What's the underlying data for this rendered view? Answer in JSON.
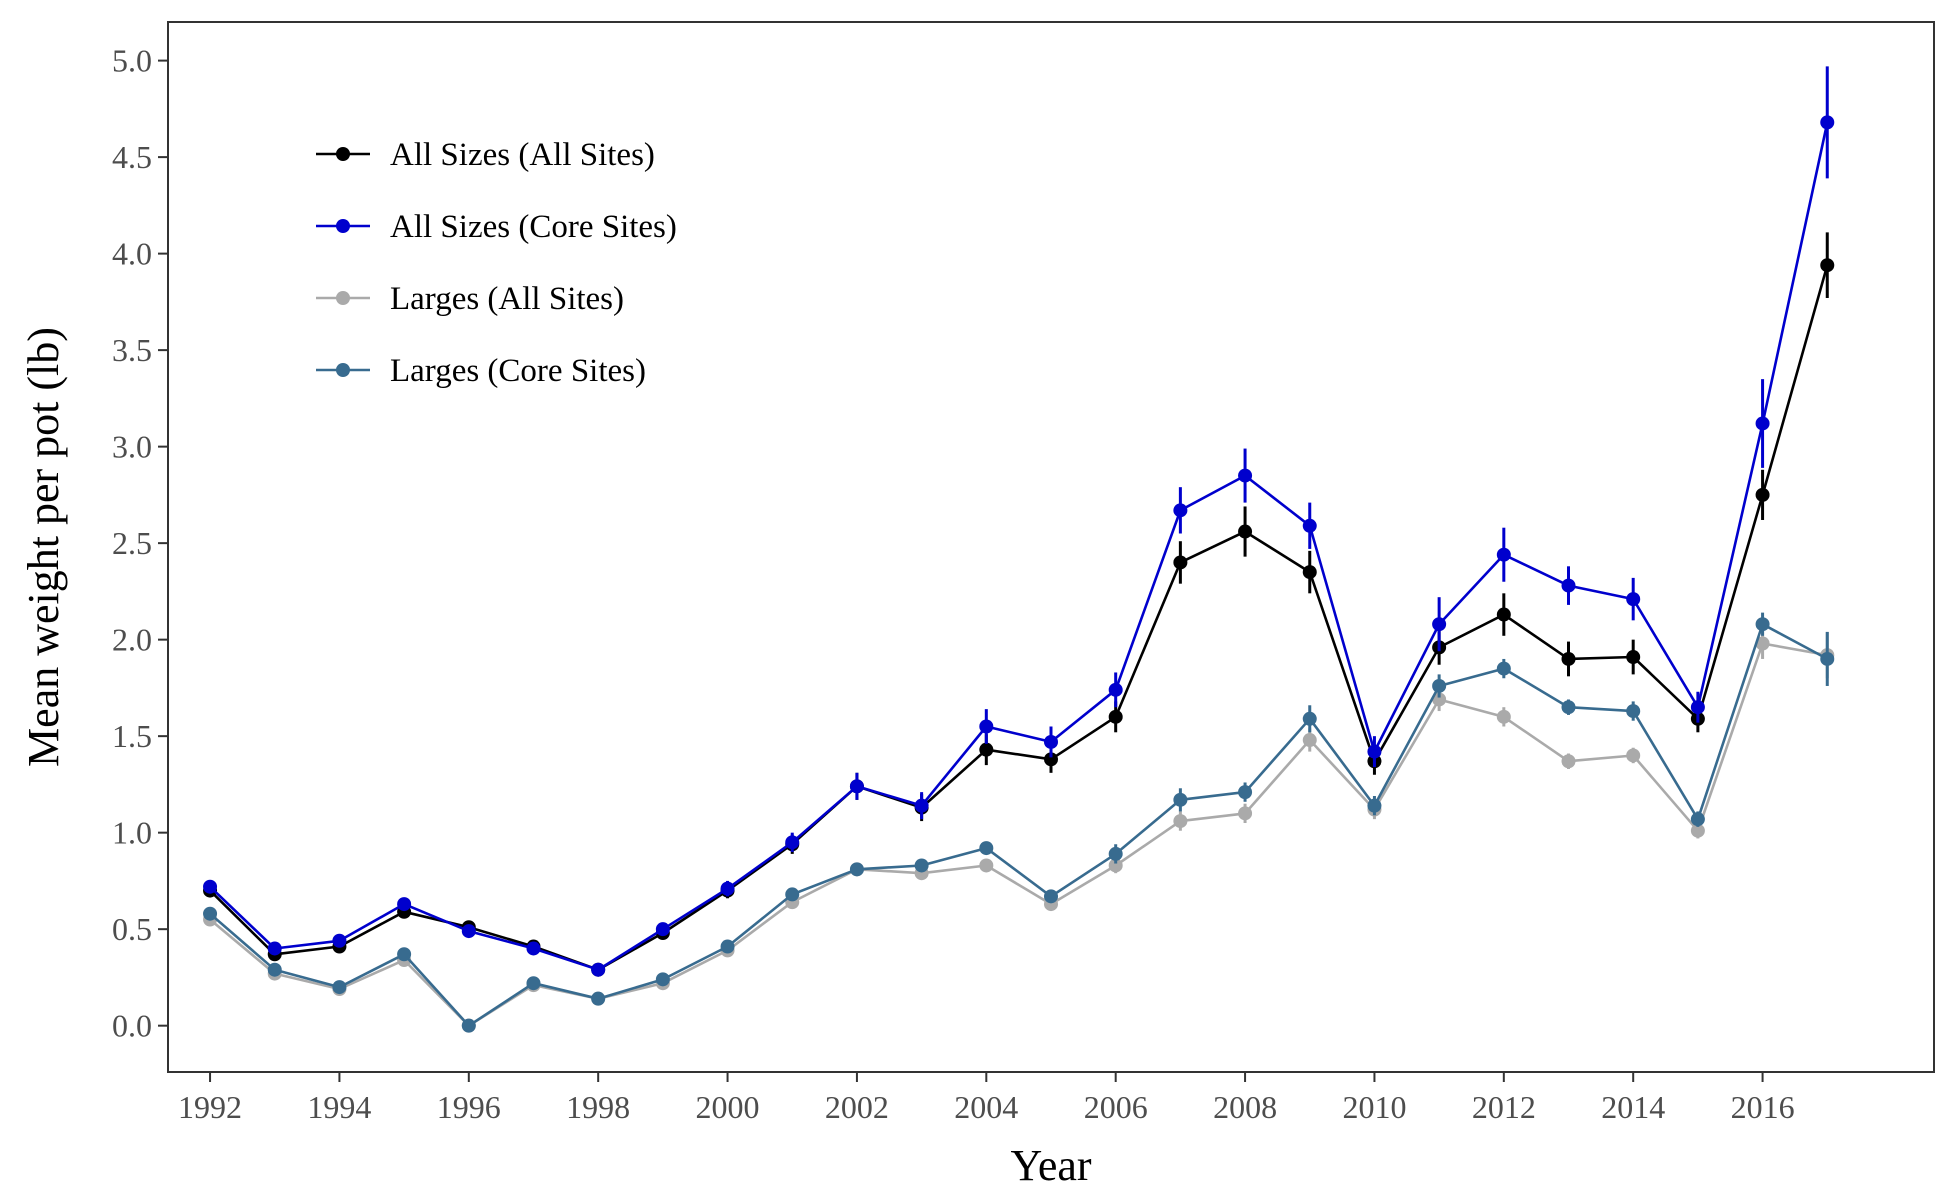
{
  "chart_data": {
    "type": "line",
    "xlabel": "Year",
    "ylabel": "Mean weight per pot (lb)",
    "x_ticks": [
      1992,
      1994,
      1996,
      1998,
      2000,
      2002,
      2004,
      2006,
      2008,
      2010,
      2012,
      2014,
      2016
    ],
    "y_ticks": [
      "0.0",
      "0.5",
      "1.0",
      "1.5",
      "2.0",
      "2.5",
      "3.0",
      "3.5",
      "4.0",
      "4.5",
      "5.0"
    ],
    "xlim": [
      1991.35,
      2018.65
    ],
    "ylim": [
      -0.24,
      5.2
    ],
    "grid": false,
    "legend_position": "top-left",
    "x": [
      1992,
      1993,
      1994,
      1995,
      1996,
      1997,
      1998,
      1999,
      2000,
      2001,
      2002,
      2003,
      2004,
      2005,
      2006,
      2007,
      2008,
      2009,
      2010,
      2011,
      2012,
      2013,
      2014,
      2015,
      2016,
      2017
    ],
    "series": [
      {
        "name": "Larges (All Sites)",
        "color": "#aaaaaa",
        "values": [
          0.55,
          0.27,
          0.19,
          0.34,
          0.0,
          0.21,
          0.14,
          0.22,
          0.39,
          0.64,
          0.81,
          0.79,
          0.83,
          0.63,
          0.83,
          1.06,
          1.1,
          1.48,
          1.12,
          1.69,
          1.6,
          1.37,
          1.4,
          1.01,
          1.98,
          1.92
        ],
        "errors": [
          0.02,
          0.02,
          0.02,
          0.02,
          0.0,
          0.02,
          0.02,
          0.02,
          0.02,
          0.03,
          0.03,
          0.03,
          0.03,
          0.03,
          0.04,
          0.05,
          0.05,
          0.06,
          0.05,
          0.06,
          0.05,
          0.04,
          0.04,
          0.04,
          0.08,
          0.12
        ]
      },
      {
        "name": "Larges (Core Sites)",
        "color": "#386b8f",
        "values": [
          0.58,
          0.29,
          0.2,
          0.37,
          0.0,
          0.22,
          0.14,
          0.24,
          0.41,
          0.68,
          0.81,
          0.83,
          0.92,
          0.67,
          0.89,
          1.17,
          1.21,
          1.59,
          1.14,
          1.76,
          1.85,
          1.65,
          1.63,
          1.07,
          2.08,
          1.9
        ],
        "errors": [
          0.02,
          0.02,
          0.02,
          0.02,
          0.0,
          0.02,
          0.02,
          0.02,
          0.02,
          0.03,
          0.03,
          0.03,
          0.03,
          0.03,
          0.05,
          0.06,
          0.05,
          0.07,
          0.05,
          0.06,
          0.05,
          0.04,
          0.05,
          0.04,
          0.06,
          0.14
        ]
      },
      {
        "name": "All Sizes (All Sites)",
        "color": "#000000",
        "values": [
          0.7,
          0.37,
          0.41,
          0.59,
          0.51,
          0.41,
          0.29,
          0.48,
          0.7,
          0.94,
          1.24,
          1.13,
          1.43,
          1.38,
          1.6,
          2.4,
          2.56,
          2.35,
          1.37,
          1.96,
          2.13,
          1.9,
          1.91,
          1.59,
          2.75,
          3.94
        ],
        "errors": [
          0.03,
          0.03,
          0.03,
          0.03,
          0.03,
          0.03,
          0.02,
          0.03,
          0.04,
          0.05,
          0.07,
          0.07,
          0.08,
          0.07,
          0.08,
          0.11,
          0.13,
          0.11,
          0.07,
          0.09,
          0.11,
          0.09,
          0.09,
          0.07,
          0.13,
          0.17
        ]
      },
      {
        "name": "All Sizes (Core Sites)",
        "color": "#0000cd",
        "values": [
          0.72,
          0.4,
          0.44,
          0.63,
          0.49,
          0.4,
          0.29,
          0.5,
          0.71,
          0.95,
          1.24,
          1.14,
          1.55,
          1.47,
          1.74,
          2.67,
          2.85,
          2.59,
          1.42,
          2.08,
          2.44,
          2.28,
          2.21,
          1.65,
          3.12,
          4.68
        ],
        "errors": [
          0.03,
          0.03,
          0.03,
          0.03,
          0.03,
          0.03,
          0.02,
          0.03,
          0.04,
          0.05,
          0.07,
          0.07,
          0.09,
          0.08,
          0.09,
          0.12,
          0.14,
          0.12,
          0.08,
          0.14,
          0.14,
          0.1,
          0.11,
          0.08,
          0.23,
          0.29
        ]
      }
    ],
    "legend": [
      {
        "name": "All Sizes (All Sites)",
        "color": "#000000"
      },
      {
        "name": "All Sizes (Core Sites)",
        "color": "#0000cd"
      },
      {
        "name": "Larges (All Sites)",
        "color": "#aaaaaa"
      },
      {
        "name": "Larges (Core Sites)",
        "color": "#386b8f"
      }
    ]
  }
}
